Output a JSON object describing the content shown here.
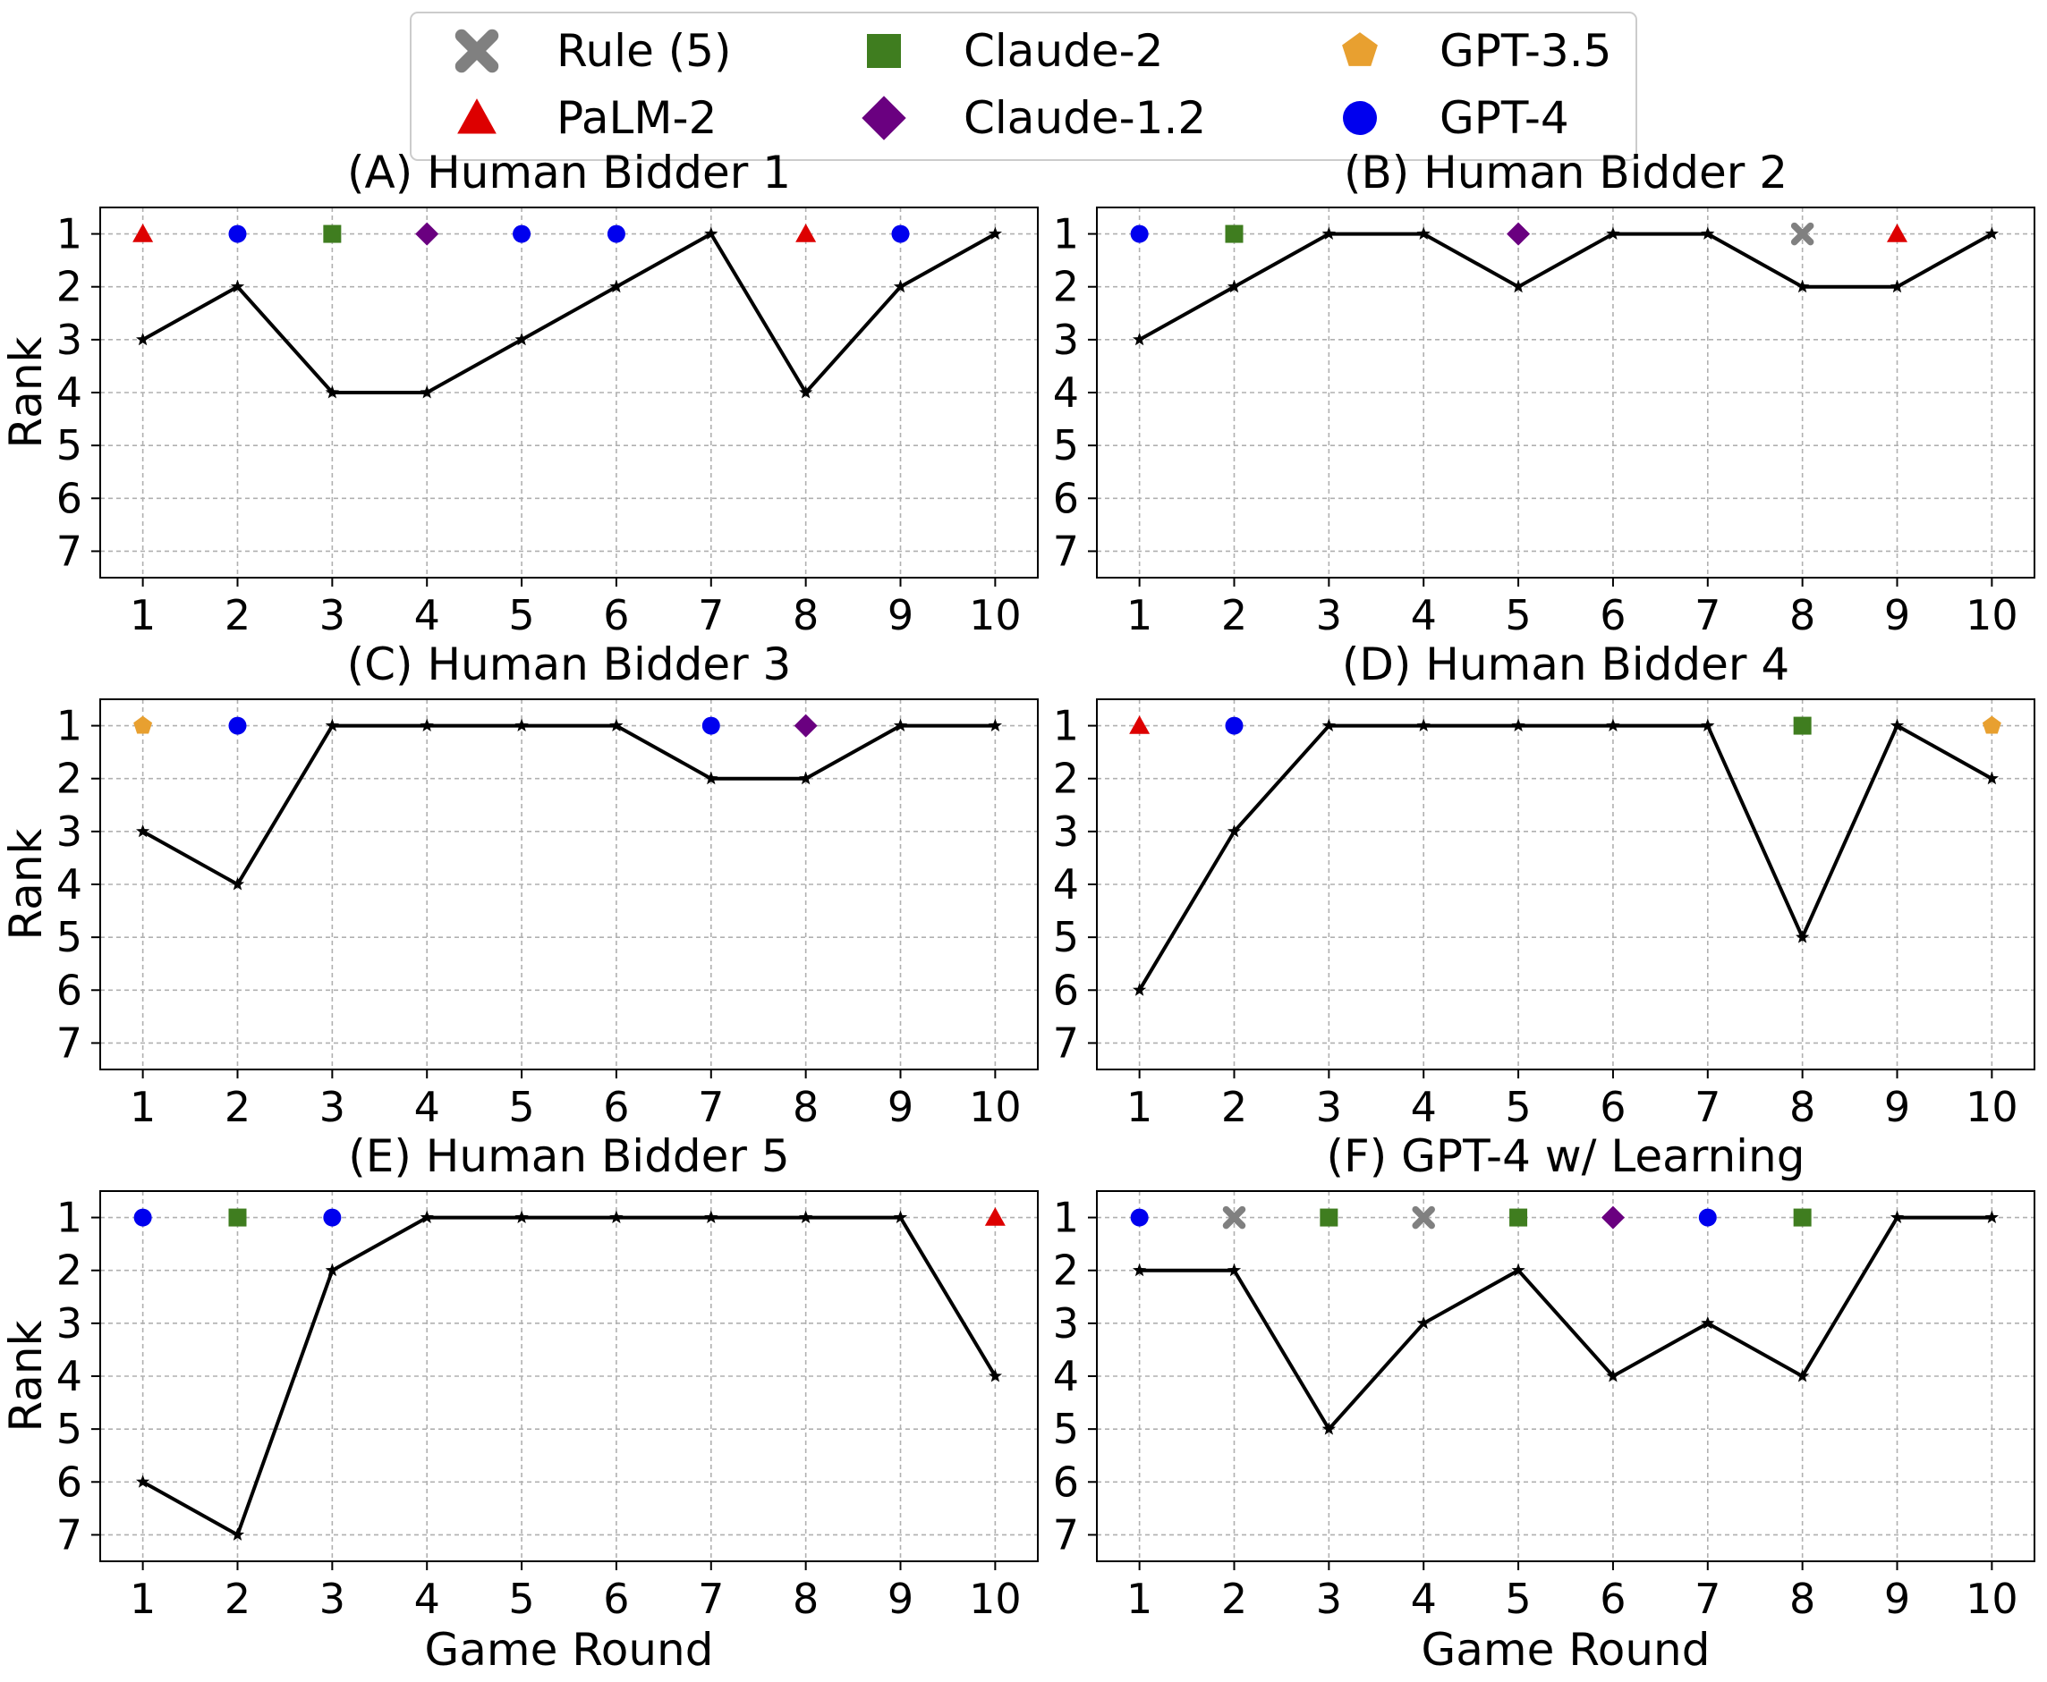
{
  "legend": {
    "entries": [
      {
        "key": "rule5",
        "label": "Rule (5)",
        "marker": "x",
        "color": "#808080"
      },
      {
        "key": "claude2",
        "label": "Claude-2",
        "marker": "square",
        "color": "#3f7d1f"
      },
      {
        "key": "gpt35",
        "label": "GPT-3.5",
        "marker": "pentagon",
        "color": "#e8a030"
      },
      {
        "key": "palm2",
        "label": "PaLM-2",
        "marker": "triangle",
        "color": "#dd0000"
      },
      {
        "key": "claude12",
        "label": "Claude-1.2",
        "marker": "diamond",
        "color": "#6a0080"
      },
      {
        "key": "gpt4",
        "label": "GPT-4",
        "marker": "circle",
        "color": "#0000ee"
      }
    ]
  },
  "chart_data": [
    {
      "type": "line",
      "title": "(A) Human Bidder 1",
      "xlabel": "",
      "ylabel": "Rank",
      "x": [
        1,
        2,
        3,
        4,
        5,
        6,
        7,
        8,
        9,
        10
      ],
      "ylim": [
        7.5,
        0.5
      ],
      "yticks": [
        1,
        2,
        3,
        4,
        5,
        6,
        7
      ],
      "grid": true,
      "series": [
        {
          "values": [
            3,
            2,
            4,
            4,
            3,
            2,
            1,
            4,
            2,
            1
          ]
        }
      ],
      "winners": [
        "palm2",
        "gpt4",
        "claude2",
        "claude12",
        "gpt4",
        "gpt4",
        null,
        "palm2",
        "gpt4",
        null
      ]
    },
    {
      "type": "line",
      "title": "(B) Human Bidder 2",
      "xlabel": "",
      "ylabel": "",
      "x": [
        1,
        2,
        3,
        4,
        5,
        6,
        7,
        8,
        9,
        10
      ],
      "ylim": [
        7.5,
        0.5
      ],
      "yticks": [
        1,
        2,
        3,
        4,
        5,
        6,
        7
      ],
      "grid": true,
      "series": [
        {
          "values": [
            3,
            2,
            1,
            1,
            2,
            1,
            1,
            2,
            2,
            1
          ]
        }
      ],
      "winners": [
        "gpt4",
        "claude2",
        null,
        null,
        "claude12",
        null,
        null,
        "rule5",
        "palm2",
        null
      ]
    },
    {
      "type": "line",
      "title": "(C) Human Bidder 3",
      "xlabel": "",
      "ylabel": "Rank",
      "x": [
        1,
        2,
        3,
        4,
        5,
        6,
        7,
        8,
        9,
        10
      ],
      "ylim": [
        7.5,
        0.5
      ],
      "yticks": [
        1,
        2,
        3,
        4,
        5,
        6,
        7
      ],
      "grid": true,
      "series": [
        {
          "values": [
            3,
            4,
            1,
            1,
            1,
            1,
            2,
            2,
            1,
            1
          ]
        }
      ],
      "winners": [
        "gpt35",
        "gpt4",
        null,
        null,
        null,
        null,
        "gpt4",
        "claude12",
        null,
        null
      ]
    },
    {
      "type": "line",
      "title": "(D) Human Bidder 4",
      "xlabel": "",
      "ylabel": "",
      "x": [
        1,
        2,
        3,
        4,
        5,
        6,
        7,
        8,
        9,
        10
      ],
      "ylim": [
        7.5,
        0.5
      ],
      "yticks": [
        1,
        2,
        3,
        4,
        5,
        6,
        7
      ],
      "grid": true,
      "series": [
        {
          "values": [
            6,
            3,
            1,
            1,
            1,
            1,
            1,
            5,
            1,
            2
          ]
        }
      ],
      "winners": [
        "palm2",
        "gpt4",
        null,
        null,
        null,
        null,
        null,
        "claude2",
        null,
        "gpt35"
      ]
    },
    {
      "type": "line",
      "title": "(E) Human Bidder 5",
      "xlabel": "Game Round",
      "ylabel": "Rank",
      "x": [
        1,
        2,
        3,
        4,
        5,
        6,
        7,
        8,
        9,
        10
      ],
      "ylim": [
        7.5,
        0.5
      ],
      "yticks": [
        1,
        2,
        3,
        4,
        5,
        6,
        7
      ],
      "grid": true,
      "series": [
        {
          "values": [
            6,
            7,
            2,
            1,
            1,
            1,
            1,
            1,
            1,
            4
          ]
        }
      ],
      "winners": [
        "gpt4",
        "claude2",
        "gpt4",
        null,
        null,
        null,
        null,
        null,
        null,
        "palm2"
      ]
    },
    {
      "type": "line",
      "title": "(F) GPT-4 w/ Learning",
      "xlabel": "Game Round",
      "ylabel": "",
      "x": [
        1,
        2,
        3,
        4,
        5,
        6,
        7,
        8,
        9,
        10
      ],
      "ylim": [
        7.5,
        0.5
      ],
      "yticks": [
        1,
        2,
        3,
        4,
        5,
        6,
        7
      ],
      "grid": true,
      "series": [
        {
          "values": [
            2,
            2,
            5,
            3,
            2,
            4,
            3,
            4,
            1,
            1
          ]
        }
      ],
      "winners": [
        "gpt4",
        "rule5",
        "claude2",
        "rule5",
        "claude2",
        "claude12",
        "gpt4",
        "claude2",
        null,
        null
      ]
    }
  ]
}
